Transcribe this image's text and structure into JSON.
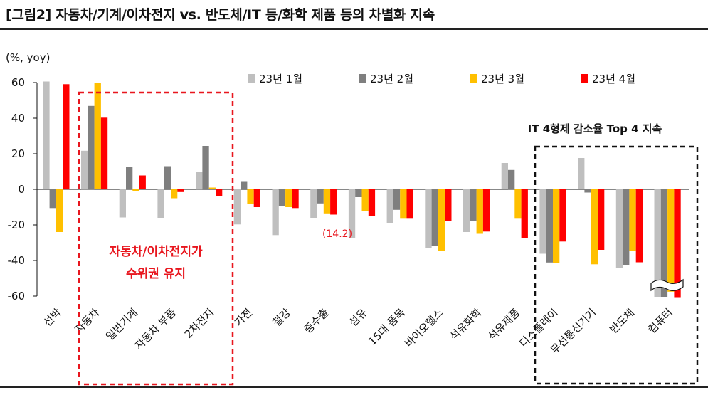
{
  "title": "[그림2] 자동차/기계/이차전지 vs. 반도체/IT 등/화학 제품 등의 차별화 지속",
  "unit_label": "(%, yoy)",
  "annotations": {
    "auto_box_line1": "자동차/이차전지가",
    "auto_box_line2": "수위권 유지",
    "it_box": "IT 4형제 감소율 Top 4 지속",
    "data_label": "(14.2)"
  },
  "chart_data": {
    "type": "bar",
    "title": "[그림2] 자동차/기계/이차전지 vs. 반도체/IT 등/화학 제품 등의 차별화 지속",
    "ylabel": "(%, yoy)",
    "ylim": [
      -60,
      60
    ],
    "yticks": [
      60,
      40,
      20,
      0,
      -20,
      -40,
      -60
    ],
    "legend_position": "top",
    "grid": false,
    "categories": [
      "선박",
      "자동차",
      "일반기계",
      "자동차 부품",
      "2차전지",
      "가전",
      "철강",
      "중수출",
      "섬유",
      "15대 품목",
      "바이오헬스",
      "석유화학",
      "석유제품",
      "디스플레이",
      "무선통신기기",
      "반도체",
      "컴퓨터"
    ],
    "series": [
      {
        "name": "23년 1월",
        "color": "#bfbfbf",
        "values": [
          60.6,
          21.7,
          -15.8,
          -16.2,
          9.7,
          -19.7,
          -25.7,
          -16.4,
          -27.5,
          -18.8,
          -33.1,
          -24.0,
          14.8,
          -36.2,
          17.6,
          -44.0,
          -60.7
        ]
      },
      {
        "name": "23년 2월",
        "color": "#7f7f7f",
        "values": [
          -10.5,
          46.9,
          12.7,
          13.0,
          24.4,
          4.2,
          -9.6,
          -7.9,
          -4.4,
          -11.5,
          -32.0,
          -18.0,
          10.9,
          -41.1,
          -1.8,
          -42.5,
          -60.6
        ]
      },
      {
        "name": "23년 3월",
        "color": "#ffc000",
        "values": [
          -24.0,
          60.0,
          -1.0,
          -5.0,
          1.0,
          -8.0,
          -10.0,
          -13.5,
          -12.0,
          -16.5,
          -34.5,
          -25.0,
          -16.5,
          -41.6,
          -42.1,
          -34.5,
          -57.5
        ]
      },
      {
        "name": "23년 4월",
        "color": "#ff0000",
        "values": [
          59.1,
          40.3,
          7.8,
          -1.5,
          -4.0,
          -10.0,
          -10.5,
          -14.2,
          -15.0,
          -16.5,
          -18.0,
          -23.7,
          -27.2,
          -29.3,
          -34.0,
          -41.0,
          -61.0
        ]
      }
    ]
  }
}
